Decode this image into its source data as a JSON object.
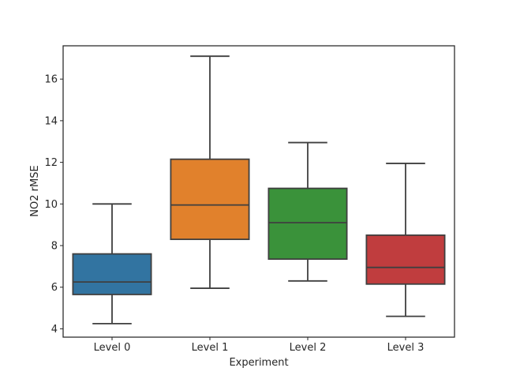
{
  "chart_data": {
    "type": "box",
    "xlabel": "Experiment",
    "ylabel": "NO2 rMSE",
    "ylim": [
      3.6,
      17.6
    ],
    "yticks": [
      4,
      6,
      8,
      10,
      12,
      14,
      16
    ],
    "grid": false,
    "categories": [
      "Level 0",
      "Level 1",
      "Level 2",
      "Level 3"
    ],
    "boxes": [
      {
        "label": "Level 0",
        "whisker_low": 4.25,
        "q1": 5.65,
        "median": 6.25,
        "q3": 7.6,
        "whisker_high": 10.0,
        "color": "#3274a1"
      },
      {
        "label": "Level 1",
        "whisker_low": 5.95,
        "q1": 8.3,
        "median": 9.95,
        "q3": 12.15,
        "whisker_high": 17.1,
        "color": "#e1812c"
      },
      {
        "label": "Level 2",
        "whisker_low": 6.3,
        "q1": 7.35,
        "median": 9.1,
        "q3": 10.75,
        "whisker_high": 12.95,
        "color": "#3a923a"
      },
      {
        "label": "Level 3",
        "whisker_low": 4.6,
        "q1": 6.15,
        "median": 6.95,
        "q3": 8.5,
        "whisker_high": 11.95,
        "color": "#c03d3e"
      }
    ]
  }
}
